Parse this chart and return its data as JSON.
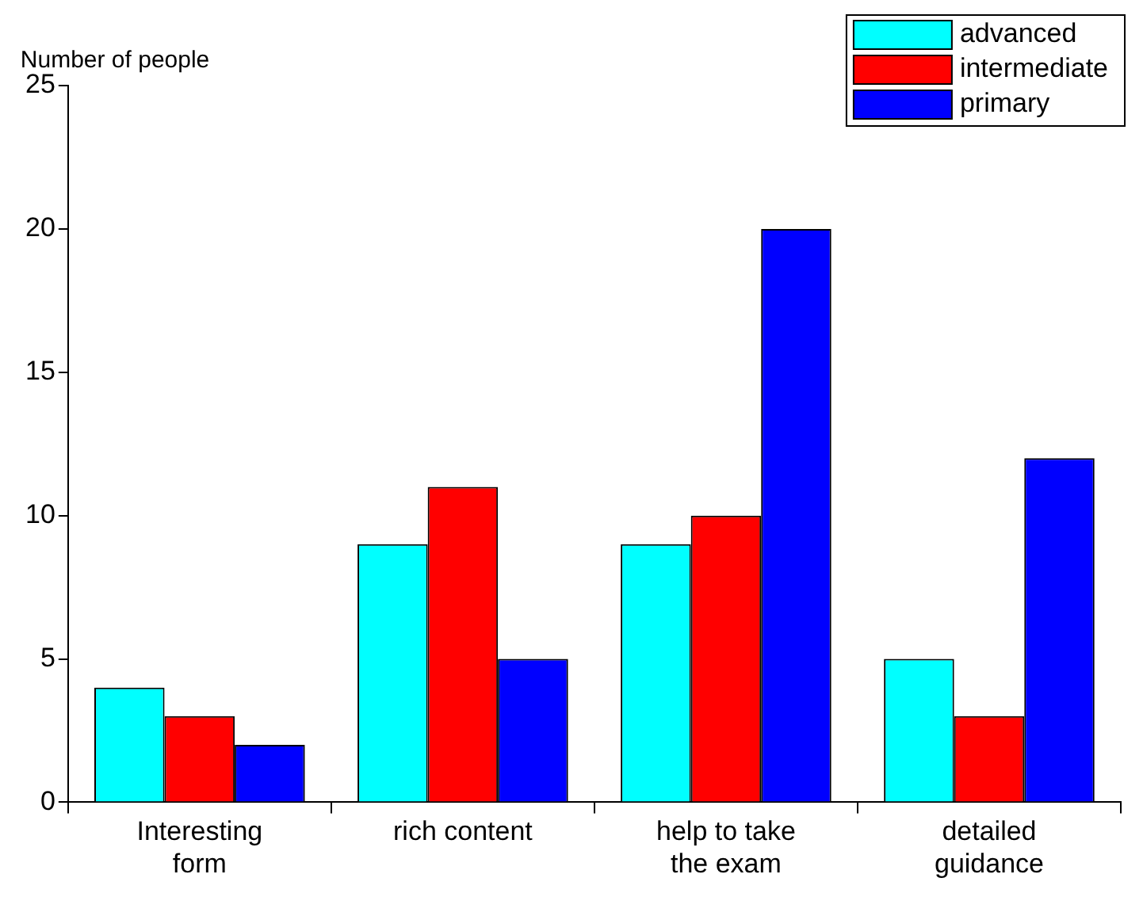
{
  "chart_data": {
    "type": "bar",
    "ylabel": "Number of people",
    "categories": [
      "Interesting form",
      "rich content",
      "help to take the exam",
      "detailed guidance"
    ],
    "series": [
      {
        "name": "advanced",
        "color": "#00ffff",
        "values": [
          4,
          9,
          9,
          5
        ]
      },
      {
        "name": "intermediate",
        "color": "#ff0000",
        "values": [
          3,
          11,
          10,
          3
        ]
      },
      {
        "name": "primary",
        "color": "#0000ff",
        "values": [
          2,
          5,
          20,
          12
        ]
      }
    ],
    "ylim": [
      0,
      25
    ],
    "yticks": [
      0,
      5,
      10,
      15,
      20,
      25
    ],
    "grid": false,
    "legend": "top right"
  }
}
